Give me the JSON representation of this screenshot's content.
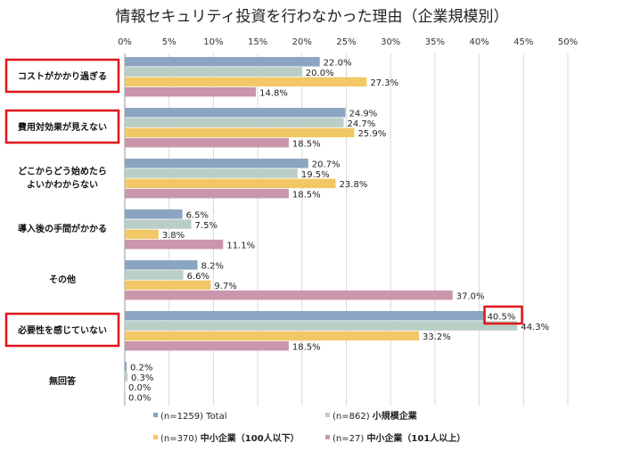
{
  "chart_data": {
    "type": "bar",
    "orientation": "horizontal",
    "title": "情報セキュリティ投資を行わなかった理由（企業規模別）",
    "xlim": [
      0,
      50
    ],
    "x_ticks": [
      "0%",
      "5%",
      "10%",
      "15%",
      "20%",
      "25%",
      "30%",
      "35%",
      "40%",
      "45%",
      "50%"
    ],
    "grid": true,
    "legend_position": "bottom",
    "categories": [
      [
        "コストがかかり過ぎる"
      ],
      [
        "費用対効果が見えない"
      ],
      [
        "どこからどう始めたら",
        "よいかわからない"
      ],
      [
        "導入後の手間がかかる"
      ],
      [
        "その他"
      ],
      [
        "必要性を感じていない"
      ],
      [
        "無回答"
      ]
    ],
    "highlighted_categories": [
      0,
      1,
      5
    ],
    "highlighted_value": {
      "category": 5,
      "series": 0
    },
    "series": [
      {
        "name_prefix": "(n=1259)",
        "name": "Total",
        "color": "#8aa4c1",
        "values": [
          22.0,
          24.9,
          20.7,
          6.5,
          8.2,
          40.5,
          0.2
        ]
      },
      {
        "name_prefix": "(n=862)",
        "name": "小規模企業",
        "color": "#b9cec6",
        "values": [
          20.0,
          24.7,
          19.5,
          7.5,
          6.6,
          44.3,
          0.3
        ]
      },
      {
        "name_prefix": "(n=370)",
        "name": "中小企業（100人以下）",
        "color": "#f2c866",
        "values": [
          27.3,
          25.9,
          23.8,
          3.8,
          9.7,
          33.2,
          0.0
        ]
      },
      {
        "name_prefix": "(n=27)",
        "name": "中小企業（101人以上）",
        "color": "#c996ab",
        "values": [
          14.8,
          18.5,
          18.5,
          11.1,
          37.0,
          18.5,
          0.0
        ]
      }
    ],
    "highlight_color": "#e0161b"
  }
}
